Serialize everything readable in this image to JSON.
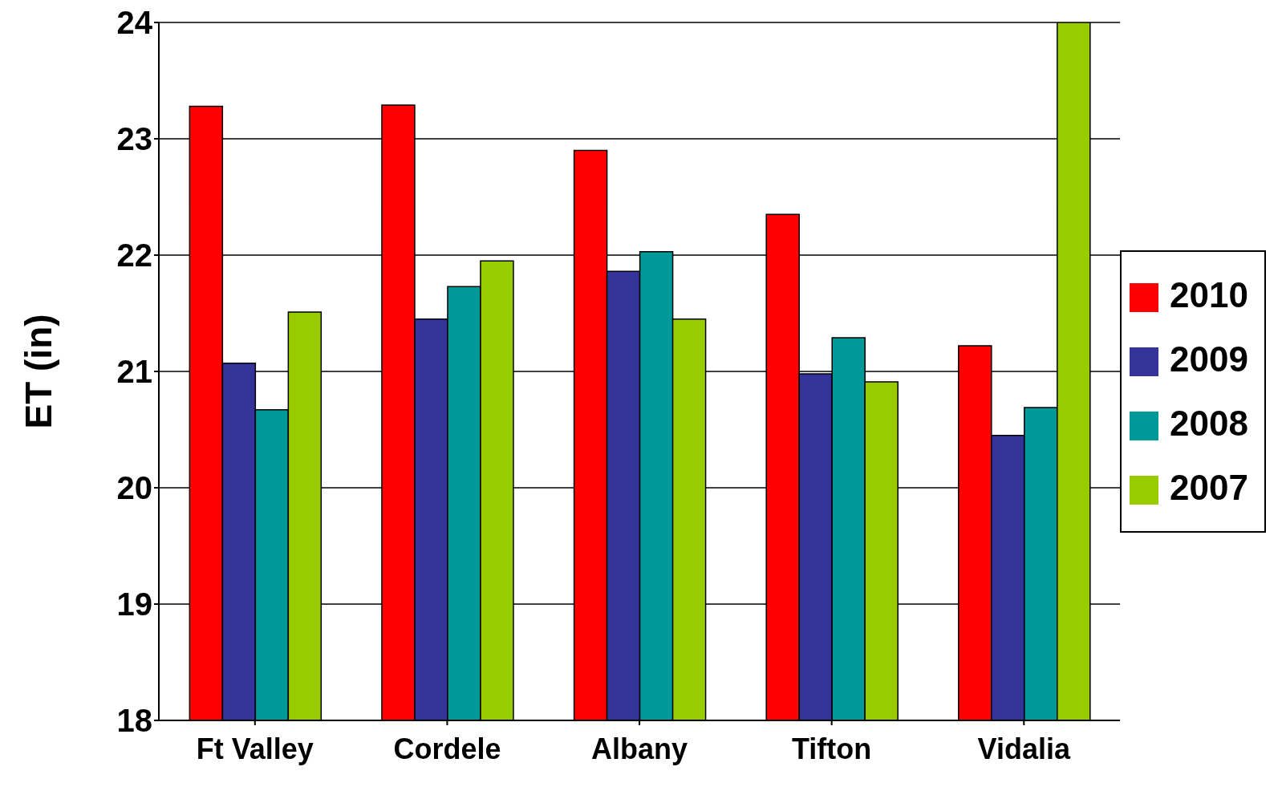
{
  "chart_data": {
    "type": "bar",
    "ylabel": "ET (in)",
    "categories": [
      "Ft Valley",
      "Cordele",
      "Albany",
      "Tifton",
      "Vidalia"
    ],
    "series": [
      {
        "name": "2010",
        "color": "#ff0000",
        "values": [
          23.28,
          23.29,
          22.9,
          22.35,
          21.22
        ]
      },
      {
        "name": "2009",
        "color": "#333399",
        "values": [
          21.07,
          21.45,
          21.86,
          20.98,
          20.45
        ]
      },
      {
        "name": "2008",
        "color": "#009999",
        "values": [
          20.67,
          21.73,
          22.03,
          21.29,
          20.69
        ]
      },
      {
        "name": "2007",
        "color": "#99cc00",
        "values": [
          21.51,
          21.95,
          21.45,
          20.91,
          24.0
        ]
      }
    ],
    "ylim": [
      18,
      24
    ],
    "yticks": [
      18,
      19,
      20,
      21,
      22,
      23,
      24
    ],
    "grid": "y",
    "legend": "right"
  }
}
